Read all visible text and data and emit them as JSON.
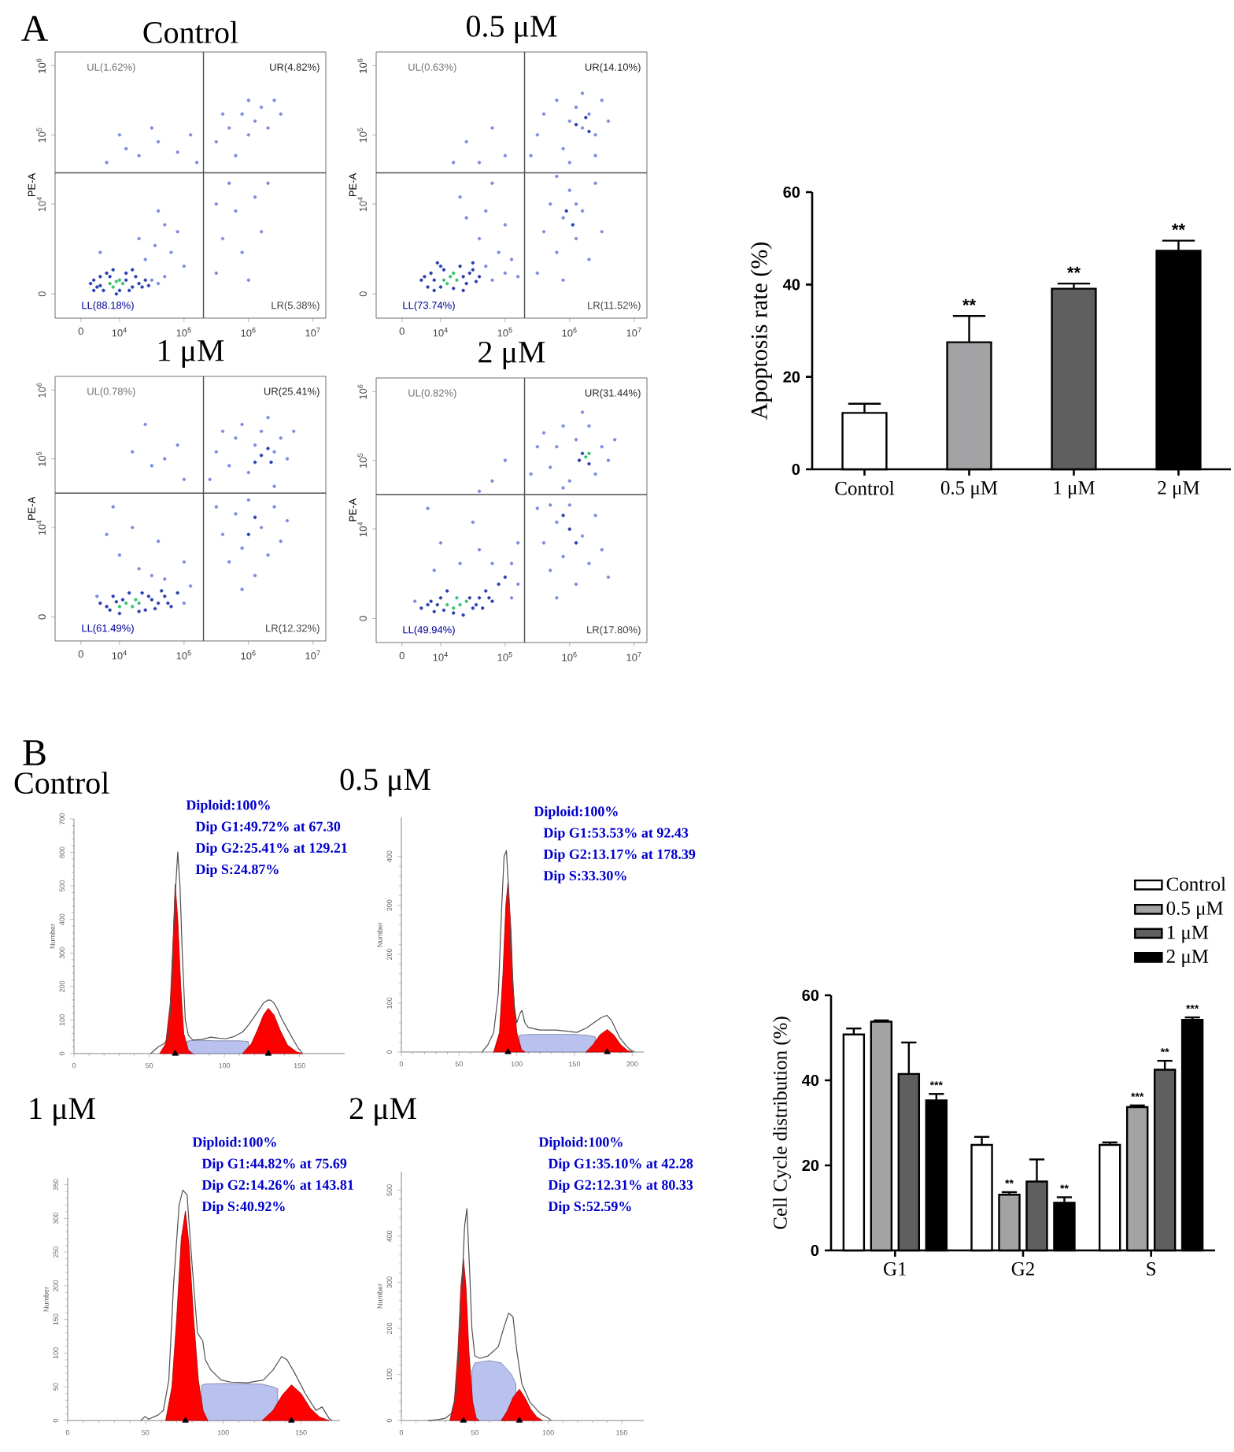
{
  "chart_data": [
    {
      "type": "scatter",
      "title": "Control",
      "ylabel": "PE-A",
      "annotations": [
        "A",
        "UL(1.62%)",
        "UR(4.82%)",
        "LL(88.18%)",
        "LR(5.38%)"
      ],
      "log": "xy",
      "xlim": [
        0,
        15800000
      ],
      "ylim": [
        0,
        1580000
      ],
      "xticks": [
        0,
        {
          "value": 10000,
          "label": "10$^{4}$"
        },
        {
          "value": 100000,
          "label": "10$^{5}$"
        },
        {
          "value": 1000000,
          "label": "10$^{6}$"
        },
        {
          "value": 10000000,
          "label": "10$^{7}$"
        }
      ],
      "yticks": [
        0,
        {
          "value": 10000,
          "label": "10$^{4}$"
        },
        {
          "value": 100000,
          "label": "10$^{5}$"
        },
        {
          "value": 1000000,
          "label": "10$^{6}$"
        }
      ],
      "ref_lines": [
        {
          "axis": "x",
          "value": 200000,
          "color": "#505050"
        },
        {
          "axis": "y",
          "value": 28200,
          "color": "#505050"
        }
      ],
      "marker": "circle",
      "series": [
        {
          "color": "#7b8ce0",
          "x": [
            31600,
            39800,
            50100,
            25100,
            20000,
            35500,
            50100,
            63100,
            100000,
            39800,
            79400,
            5010,
            6310,
            12600,
            20000,
            39800,
            79400,
            126000,
            31600,
            10000,
            158000,
            316000,
            501000,
            794000,
            1000000,
            1260000,
            1580000,
            2000000,
            2510000,
            631000,
            1000000,
            398000,
            3160000,
            316000,
            398000,
            631000,
            794000,
            1260000,
            1580000,
            1000000,
            501000,
            2000000,
            316000
          ],
          "values": [
            794,
            708,
            891,
            1580,
            3160,
            2510,
            5010,
            2000,
            1260,
            7940,
            3980,
            2000,
            39800,
            63100,
            50100,
            79400,
            56200,
            100000,
            126000,
            100000,
            39800,
            79400,
            126000,
            200000,
            100000,
            158000,
            251000,
            126000,
            316000,
            50100,
            316000,
            200000,
            200000,
            1000,
            3160,
            7940,
            2000,
            12600,
            3980,
            794,
            20000,
            20000,
            10000
          ]
        },
        {
          "color": "#2a3fb0",
          "x": [
            3550,
            4470,
            5010,
            5620,
            6310,
            12600,
            15800,
            17800,
            20000,
            25100,
            3980,
            14100,
            3980,
            5010,
            7080,
            7940,
            10000,
            12600,
            22400,
            15800,
            8910,
            28200
          ],
          "values": [
            708,
            631,
            891,
            562,
            1000,
            1000,
            631,
            891,
            708,
            794,
            562,
            562,
            794,
            661,
            891,
            1120,
            562,
            794,
            631,
            1120,
            501,
            661
          ]
        },
        {
          "color": "#38c172",
          "x": [
            7080,
            8910,
            11200,
            7940,
            10000
          ],
          "values": [
            708,
            759,
            708,
            631,
            794
          ]
        }
      ]
    },
    {
      "type": "scatter",
      "title": "0.5 μM",
      "ylabel": "PE-A",
      "annotations": [
        "UL(0.63%)",
        "UR(14.10%)",
        "LL(73.74%)",
        "LR(11.52%)"
      ],
      "log": "xy",
      "xlim": [
        0,
        15800000
      ],
      "ylim": [
        0,
        1580000
      ],
      "xticks": [
        0,
        {
          "value": 10000,
          "label": "10$^{4}$"
        },
        {
          "value": 100000,
          "label": "10$^{5}$"
        },
        {
          "value": 1000000,
          "label": "10$^{6}$"
        },
        {
          "value": 10000000,
          "label": "10$^{7}$"
        }
      ],
      "yticks": [
        0,
        {
          "value": 10000,
          "label": "10$^{4}$"
        },
        {
          "value": 100000,
          "label": "10$^{5}$"
        },
        {
          "value": 1000000,
          "label": "10$^{6}$"
        }
      ],
      "ref_lines": [
        {
          "axis": "x",
          "value": 200000,
          "color": "#505050"
        },
        {
          "axis": "y",
          "value": 28200,
          "color": "#505050"
        }
      ],
      "marker": "circle",
      "series": [
        {
          "color": "#7b8ce0",
          "x": [
            50100,
            63100,
            79400,
            100000,
            126000,
            39800,
            50100,
            63100,
            25100,
            100000,
            158000,
            20000,
            25100,
            39800,
            63100,
            100000,
            15800,
            251000,
            316000,
            398000,
            631000,
            794000,
            1000000,
            1260000,
            1580000,
            2000000,
            2510000,
            3160000,
            1580000,
            1000000,
            2510000,
            3980000,
            316000,
            398000,
            501000,
            631000,
            794000,
            1000000,
            1260000,
            1580000,
            2000000,
            2510000,
            794000,
            3160000,
            631000,
            1260000
          ],
          "values": [
            1260,
            794,
            2000,
            1000,
            1580,
            3160,
            7940,
            20000,
            6310,
            5010,
            891,
            12600,
            79400,
            39800,
            126000,
            50100,
            39800,
            50100,
            100000,
            200000,
            316000,
            63100,
            158000,
            251000,
            126000,
            200000,
            100000,
            316000,
            398000,
            39800,
            50100,
            158000,
            1000,
            3980,
            10000,
            2000,
            6310,
            15800,
            3160,
            7940,
            1580,
            20000,
            794,
            3980,
            25100,
            10000
          ]
        },
        {
          "color": "#2a3fb0",
          "x": [
            5010,
            6310,
            7080,
            7940,
            10000,
            20000,
            25100,
            28200,
            31600,
            39800,
            22400,
            8910,
            5620,
            7940,
            10000,
            22400,
            31600,
            15800,
            11200,
            35500,
            1260000,
            1780000,
            2000000,
            891000,
            1120000
          ],
          "values": [
            794,
            631,
            1000,
            562,
            1260,
            1260,
            708,
            1000,
            1410,
            891,
            562,
            1410,
            891,
            794,
            631,
            891,
            1120,
            603,
            1120,
            759,
            141000,
            178000,
            112000,
            7940,
            5010
          ]
        },
        {
          "color": "#38c172",
          "x": [
            11200,
            14100,
            17800,
            12600,
            15800
          ],
          "values": [
            794,
            891,
            794,
            708,
            1000
          ]
        }
      ]
    },
    {
      "type": "bar",
      "ylabel": "Apoptosis rate (%)",
      "categories": [
        "Control",
        "0.5 μM",
        "1 μM",
        "2 μM"
      ],
      "values": [
        12.2,
        27.5,
        39.1,
        47.3
      ],
      "colors": [
        "#ffffff",
        "#a3a3a6",
        "#5f5f5f",
        "#000000"
      ],
      "errors": [
        [
          12.2,
          14.2
        ],
        [
          27.5,
          33.2
        ],
        [
          39.1,
          40.2
        ],
        [
          47.3,
          49.5
        ]
      ],
      "value_labels": [
        null,
        "**",
        "**",
        "**"
      ],
      "ylim": [
        0,
        60
      ],
      "yticks": [
        0,
        20,
        40,
        60
      ]
    },
    {
      "type": "scatter",
      "title": "1 μM",
      "ylabel": "PE-A",
      "annotations": [
        "UL(0.78%)",
        "UR(25.41%)",
        "LL(61.49%)",
        "LR(12.32%)"
      ],
      "log": "xy",
      "xlim": [
        0,
        15800000
      ],
      "ylim": [
        0,
        1580000
      ],
      "xticks": [
        0,
        {
          "value": 10000,
          "label": "10$^{4}$"
        },
        {
          "value": 100000,
          "label": "10$^{5}$"
        },
        {
          "value": 1000000,
          "label": "10$^{6}$"
        },
        {
          "value": 10000000,
          "label": "10$^{7}$"
        }
      ],
      "yticks": [
        0,
        {
          "value": 10000,
          "label": "10$^{4}$"
        },
        {
          "value": 100000,
          "label": "10$^{5}$"
        },
        {
          "value": 1000000,
          "label": "10$^{6}$"
        }
      ],
      "ref_lines": [
        {
          "axis": "x",
          "value": 200000,
          "color": "#505050"
        },
        {
          "axis": "y",
          "value": 31600,
          "color": "#505050"
        }
      ],
      "marker": "circle",
      "series": [
        {
          "color": "#7b8ce0",
          "x": [
            4470,
            100000,
            126000,
            50100,
            31600,
            20000,
            10000,
            6310,
            15800,
            39800,
            100000,
            7940,
            15800,
            31600,
            50100,
            79400,
            25100,
            100000,
            251000,
            316000,
            398000,
            501000,
            631000,
            794000,
            1000000,
            1260000,
            1580000,
            2510000,
            3160000,
            3980000,
            2000000,
            2510000,
            5010000,
            316000,
            398000,
            501000,
            631000,
            794000,
            1000000,
            1260000,
            1580000,
            2000000,
            2510000,
            3160000,
            794000,
            3980000
          ],
          "values": [
            1000,
            794,
            1410,
            1780,
            2000,
            2510,
            3980,
            7940,
            10000,
            6310,
            3160,
            20000,
            126000,
            79400,
            100000,
            158000,
            316000,
            50100,
            50100,
            126000,
            251000,
            79400,
            200000,
            316000,
            63100,
            158000,
            251000,
            126000,
            200000,
            100000,
            398000,
            39800,
            251000,
            20000,
            7940,
            3160,
            15800,
            5010,
            25100,
            2000,
            10000,
            3980,
            20000,
            6310,
            1260,
            12600
          ]
        },
        {
          "color": "#2a3fb0",
          "x": [
            5010,
            6310,
            7940,
            25100,
            31600,
            39800,
            50100,
            63100,
            79400,
            22400,
            10000,
            14100,
            7080,
            11200,
            28200,
            35500,
            56200,
            20000,
            8910,
            44700,
            1580000,
            2000000,
            1260000,
            2240000,
            1000000,
            1260000
          ],
          "values": [
            794,
            708,
            1000,
            631,
            891,
            794,
            1000,
            708,
            1120,
            1120,
            562,
            1120,
            631,
            891,
            1000,
            661,
            794,
            603,
            832,
            1200,
            112000,
            141000,
            89100,
            89100,
            7940,
            14100
          ]
        },
        {
          "color": "#38c172",
          "x": [
            12600,
            15800,
            20000,
            10000,
            17800
          ],
          "values": [
            794,
            708,
            794,
            708,
            891
          ]
        }
      ]
    },
    {
      "type": "scatter",
      "title": "2 μM",
      "ylabel": "PE-A",
      "annotations": [
        "UL(0.82%)",
        "UR(31.44%)",
        "LL(49.94%)",
        "LR(17.80%)"
      ],
      "log": "xy",
      "xlim": [
        0,
        15800000
      ],
      "ylim": [
        0,
        1580000
      ],
      "xticks": [
        0,
        {
          "value": 10000,
          "label": "10$^{4}$"
        },
        {
          "value": 100000,
          "label": "10$^{5}$"
        },
        {
          "value": 1000000,
          "label": "10$^{6}$"
        },
        {
          "value": 10000000,
          "label": "10$^{7}$"
        }
      ],
      "yticks": [
        0,
        {
          "value": 10000,
          "label": "10$^{4}$"
        },
        {
          "value": 100000,
          "label": "10$^{5}$"
        },
        {
          "value": 1000000,
          "label": "10$^{6}$"
        }
      ],
      "ref_lines": [
        {
          "axis": "x",
          "value": 200000,
          "color": "#505050"
        },
        {
          "axis": "y",
          "value": 31600,
          "color": "#505050"
        }
      ],
      "marker": "circle",
      "series": [
        {
          "color": "#7b8ce0",
          "x": [
            3980,
            126000,
            126000,
            158000,
            63100,
            39800,
            20000,
            7940,
            10000,
            31600,
            158000,
            6310,
            63100,
            100000,
            39800,
            251000,
            316000,
            398000,
            501000,
            631000,
            794000,
            1000000,
            1260000,
            2000000,
            2510000,
            3160000,
            3980000,
            1580000,
            5010000,
            794000,
            316000,
            398000,
            501000,
            631000,
            794000,
            1000000,
            1260000,
            1580000,
            2000000,
            2510000,
            3160000,
            631000,
            3980000,
            501000
          ],
          "values": [
            891,
            1000,
            3160,
            6310,
            3160,
            5010,
            3160,
            2510,
            6310,
            12600,
            1580,
            20000,
            50100,
            100000,
            35500,
            63100,
            158000,
            251000,
            79400,
            158000,
            316000,
            50100,
            200000,
            316000,
            63100,
            158000,
            100000,
            501000,
            200000,
            39800,
            20000,
            6310,
            2510,
            12600,
            3980,
            22400,
            1580,
            7940,
            3160,
            15800,
            5010,
            1000,
            2000,
            22400
          ]
        },
        {
          "color": "#2a3fb0",
          "x": [
            5010,
            6310,
            7940,
            10000,
            31600,
            39800,
            50100,
            63100,
            79400,
            22400,
            12600,
            100000,
            7080,
            8910,
            28200,
            35500,
            44700,
            15800,
            11200,
            56200,
            1580000,
            2000000,
            1410000,
            1000000,
            1260000,
            794000
          ],
          "values": [
            708,
            794,
            631,
            1000,
            708,
            1000,
            1260,
            891,
            1580,
            562,
            1260,
            2000,
            891,
            794,
            1000,
            794,
            708,
            603,
            661,
            1000,
            126000,
            89100,
            100000,
            10000,
            6310,
            15800
          ]
        },
        {
          "color": "#38c172",
          "x": [
            12600,
            15800,
            20000,
            25100,
            17800,
            1780000,
            2000000
          ],
          "values": [
            794,
            708,
            794,
            891,
            1000,
            112000,
            126000
          ]
        }
      ]
    },
    {
      "type": "area",
      "title": "Control",
      "ylabel": "Number",
      "annotations": [
        "B",
        "Diploid:100%",
        "Dip G1:49.72% at 67.30",
        "Dip G2:25.41% at 129.21",
        "Dip S:24.87%"
      ],
      "xlim": [
        0,
        180
      ],
      "ylim": [
        0,
        700
      ],
      "xticks": [
        0,
        50,
        100,
        150
      ],
      "yticks": [
        0,
        100,
        200,
        300,
        400,
        500,
        600,
        700
      ],
      "series": [
        {
          "type": "area",
          "color": "#b9c1ee",
          "x": [
            75,
            80,
            95,
            110,
            116
          ],
          "values": [
            37,
            40,
            38,
            38,
            36
          ]
        },
        {
          "type": "area",
          "color": "#ff0000",
          "x": [
            57,
            61,
            64,
            66,
            67.3,
            69,
            71,
            73,
            76,
            79
          ],
          "values": [
            0,
            30,
            150,
            350,
            504,
            400,
            200,
            60,
            10,
            0
          ]
        },
        {
          "type": "area",
          "color": "#ff0000",
          "x": [
            112,
            118,
            122,
            126,
            129.21,
            133,
            137,
            142,
            148,
            152
          ],
          "values": [
            0,
            30,
            70,
            115,
            135,
            115,
            70,
            25,
            5,
            0
          ]
        },
        {
          "type": "line",
          "color": "#505050",
          "x": [
            51,
            56,
            60,
            63,
            65,
            67,
            69,
            70.5,
            72,
            74,
            76,
            79,
            85,
            91,
            96,
            101,
            106,
            112,
            116,
            119,
            123,
            126,
            129,
            131,
            133,
            135,
            138,
            142,
            146,
            149,
            152
          ],
          "values": [
            0,
            20,
            30,
            50,
            200,
            450,
            601,
            500,
            300,
            100,
            55,
            40,
            42,
            49,
            46,
            44,
            50,
            64,
            85,
            104,
            130,
            151,
            160,
            159,
            150,
            135,
            105,
            72,
            40,
            17,
            0
          ]
        },
        {
          "type": "scatter",
          "color": "#000000",
          "marker": "triangle",
          "x": [
            67.3,
            129.21
          ],
          "values": [
            0,
            0
          ]
        }
      ]
    },
    {
      "type": "area",
      "title": "0.5 μM",
      "ylabel": "Number",
      "annotations": [
        "Diploid:100%",
        "Dip G1:53.53% at 92.43",
        "Dip G2:13.17% at 178.39",
        "Dip S:33.30%"
      ],
      "xlim": [
        0,
        210
      ],
      "ylim": [
        0,
        480
      ],
      "xticks": [
        0,
        50,
        100,
        150,
        200
      ],
      "yticks": [
        0,
        100,
        200,
        300,
        400
      ],
      "series": [
        {
          "type": "area",
          "color": "#b9c1ee",
          "x": [
            102,
            110,
            130,
            150,
            162,
            168
          ],
          "values": [
            34,
            36,
            36,
            36,
            34,
            31
          ]
        },
        {
          "type": "area",
          "color": "#ff0000",
          "x": [
            80,
            85,
            88,
            90.5,
            92.43,
            95,
            97,
            100,
            104,
            107
          ],
          "values": [
            0,
            40,
            160,
            300,
            347,
            250,
            120,
            40,
            5,
            0
          ]
        },
        {
          "type": "area",
          "color": "#ff0000",
          "x": [
            160,
            166,
            172,
            178.39,
            184,
            190,
            196,
            200
          ],
          "values": [
            0,
            15,
            35,
            46,
            35,
            15,
            3,
            0
          ]
        },
        {
          "type": "line",
          "color": "#505050",
          "x": [
            70,
            75,
            80,
            84,
            87,
            89,
            91,
            93,
            95,
            98,
            100,
            103,
            104.5,
            107,
            110,
            120,
            134,
            145,
            152,
            161,
            168,
            173,
            178,
            182,
            189,
            194,
            198,
            202
          ],
          "values": [
            0,
            15,
            40,
            120,
            300,
            400,
            412,
            330,
            200,
            90,
            60,
            80,
            85,
            60,
            50,
            45,
            45,
            42,
            40,
            50,
            62,
            70,
            75,
            65,
            30,
            15,
            5,
            0
          ]
        },
        {
          "type": "scatter",
          "color": "#000000",
          "marker": "triangle",
          "x": [
            92.43,
            178.39
          ],
          "values": [
            0,
            0
          ]
        }
      ]
    },
    {
      "type": "bar",
      "ylabel": "Cell Cycle distribution (%)",
      "categories": [
        "G1",
        "G2",
        "S"
      ],
      "legend": "top right",
      "ylim": [
        0,
        60
      ],
      "yticks": [
        0,
        20,
        40,
        60
      ],
      "series": [
        {
          "name": "Control",
          "color": "#ffffff",
          "values": [
            50.8,
            24.8,
            24.8
          ],
          "errors": [
            [
              50.8,
              52.2
            ],
            [
              24.8,
              26.7
            ],
            [
              24.8,
              25.4
            ]
          ]
        },
        {
          "name": "0.5 μM",
          "color": "#a3a3a6",
          "values": [
            53.8,
            13.1,
            33.7
          ],
          "errors": [
            [
              53.8,
              54.1
            ],
            [
              13.1,
              13.7
            ],
            [
              33.7,
              34.1
            ]
          ],
          "value_labels": [
            null,
            "**",
            "***"
          ]
        },
        {
          "name": "1 μM",
          "color": "#5f5f5f",
          "values": [
            41.5,
            16.2,
            42.5
          ],
          "errors": [
            [
              41.5,
              48.9
            ],
            [
              16.2,
              21.4
            ],
            [
              42.5,
              44.6
            ]
          ],
          "value_labels": [
            null,
            null,
            "**"
          ]
        },
        {
          "name": "2 μM",
          "color": "#000000",
          "values": [
            35.3,
            11.2,
            54.2
          ],
          "errors": [
            [
              35.3,
              36.8
            ],
            [
              11.2,
              12.5
            ],
            [
              54.2,
              54.8
            ]
          ],
          "value_labels": [
            "***",
            "**",
            "***"
          ]
        }
      ]
    },
    {
      "type": "area",
      "title": "1 μM",
      "ylabel": "Number",
      "annotations": [
        "Diploid:100%",
        "Dip G1:44.82% at 75.69",
        "Dip G2:14.26% at 143.81",
        "Dip S:40.92%"
      ],
      "xlim": [
        0,
        175
      ],
      "ylim": [
        0,
        360
      ],
      "xticks": [
        0,
        50,
        100,
        150
      ],
      "yticks": [
        0,
        50,
        100,
        150,
        200,
        250,
        300,
        350
      ],
      "series": [
        {
          "type": "area",
          "color": "#b9c1ee",
          "x": [
            86,
            88,
            100,
            125,
            132,
            135
          ],
          "values": [
            52,
            54,
            55,
            54,
            50,
            47
          ]
        },
        {
          "type": "area",
          "color": "#ff0000",
          "x": [
            63,
            67,
            70,
            73,
            75.69,
            78,
            81,
            84,
            87,
            90
          ],
          "values": [
            0,
            50,
            150,
            270,
            311,
            260,
            150,
            60,
            15,
            0
          ]
        },
        {
          "type": "area",
          "color": "#ff0000",
          "x": [
            125,
            132,
            138,
            143.81,
            150,
            156,
            162,
            168
          ],
          "values": [
            0,
            15,
            38,
            53,
            40,
            18,
            5,
            0
          ]
        },
        {
          "type": "line",
          "color": "#505050",
          "x": [
            47,
            49.7,
            52,
            58,
            61.5,
            65,
            68,
            71.6,
            74,
            76.7,
            80,
            83.4,
            86.8,
            88.5,
            92,
            98.6,
            105,
            115.5,
            125.7,
            132,
            137.5,
            141,
            146,
            152.7,
            159.5,
            163.5,
            168,
            170
          ],
          "values": [
            0,
            6,
            2,
            8,
            15,
            60,
            200,
            320,
            342,
            335,
            230,
            130,
            118,
            90,
            75,
            60,
            57,
            56,
            60,
            75,
            95,
            90,
            70,
            40,
            15,
            20,
            3,
            0
          ]
        },
        {
          "type": "scatter",
          "color": "#000000",
          "marker": "triangle",
          "x": [
            75.69,
            143.81
          ],
          "values": [
            0,
            0
          ]
        }
      ]
    },
    {
      "type": "area",
      "title": "2 μM",
      "ylabel": "Number",
      "annotations": [
        "Diploid:100%",
        "Dip G1:35.10% at 42.28",
        "Dip G2:12.31% at 80.33",
        "Dip S:52.59%"
      ],
      "xlim": [
        0,
        165
      ],
      "ylim": [
        0,
        540
      ],
      "xticks": [
        0,
        50,
        100,
        150
      ],
      "yticks": [
        0,
        100,
        200,
        300,
        400,
        500
      ],
      "series": [
        {
          "type": "area",
          "color": "#b9c1ee",
          "x": [
            48,
            50,
            60,
            68,
            75,
            78
          ],
          "values": [
            109,
            125,
            130,
            125,
            100,
            79
          ]
        },
        {
          "type": "area",
          "color": "#ff0000",
          "x": [
            33,
            36,
            38.5,
            40.5,
            42.28,
            44,
            46,
            48.5,
            51,
            53
          ],
          "values": [
            0,
            40,
            150,
            290,
            350,
            290,
            150,
            40,
            5,
            0
          ]
        },
        {
          "type": "area",
          "color": "#ff0000",
          "x": [
            68,
            72,
            76,
            80.33,
            84,
            88,
            92,
            96
          ],
          "values": [
            0,
            20,
            50,
            68,
            50,
            25,
            8,
            0
          ]
        },
        {
          "type": "line",
          "color": "#505050",
          "x": [
            18,
            25,
            30,
            34,
            37.5,
            40,
            43,
            44.6,
            46.4,
            48,
            50,
            53.6,
            59,
            66,
            69.6,
            73,
            76,
            78.6,
            82,
            87.5,
            94.6,
            100,
            102
          ],
          "values": [
            0,
            2,
            5,
            15,
            60,
            200,
            420,
            460,
            330,
            200,
            140,
            135,
            140,
            160,
            200,
            233,
            225,
            150,
            80,
            40,
            15,
            5,
            0
          ]
        },
        {
          "type": "scatter",
          "color": "#000000",
          "marker": "triangle",
          "x": [
            42.28,
            80.33
          ],
          "values": [
            0,
            0
          ]
        }
      ]
    }
  ]
}
